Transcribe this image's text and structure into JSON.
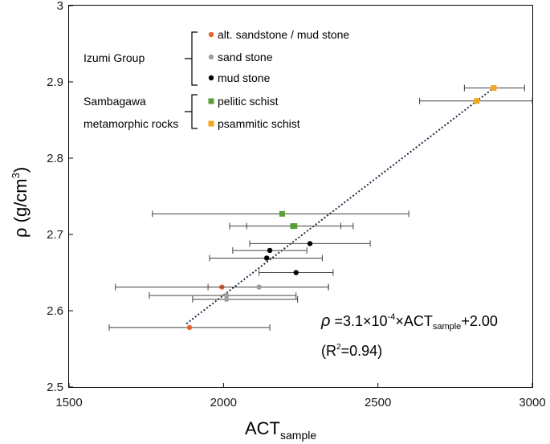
{
  "chart_data": {
    "type": "scatter",
    "title": "",
    "xlabel": "ACT",
    "xlabel_sub": "sample",
    "ylabel": "ρ (g/cm",
    "ylabel_sup": "3",
    "ylabel_close": ")",
    "xlim": [
      1500,
      3000
    ],
    "ylim": [
      2.5,
      3.0
    ],
    "xticks": [
      "1500",
      "2000",
      "2500",
      "3000"
    ],
    "xtick_values": [
      1500,
      2000,
      2500,
      3000
    ],
    "yticks": [
      "2.5",
      "2.6",
      "2.7",
      "2.8",
      "2.9",
      "3"
    ],
    "ytick_values": [
      2.5,
      2.6,
      2.7,
      2.8,
      2.9,
      3.0
    ],
    "grid": false,
    "legend_position": "top-left",
    "legend_groups": [
      {
        "label": "Izumi Group",
        "line2": ""
      },
      {
        "label": "Sambagawa",
        "line2": "metamorphic rocks"
      }
    ],
    "series": [
      {
        "name": "alt. sandstone / mud stone",
        "group": 0,
        "color": "#e8622c",
        "marker": "circle",
        "points": [
          {
            "x": 1890,
            "y": 2.578,
            "xerr": [
              1630,
              2150
            ]
          },
          {
            "x": 1995,
            "y": 2.631,
            "xerr": [
              1650,
              2340
            ]
          }
        ]
      },
      {
        "name": "sand stone",
        "group": 0,
        "color": "#9e9e9e",
        "marker": "circle",
        "points": [
          {
            "x": 2115,
            "y": 2.631,
            "xerr": [
              1950,
              2340
            ]
          },
          {
            "x": 2010,
            "y": 2.62,
            "xerr": [
              1760,
              2235
            ]
          },
          {
            "x": 2010,
            "y": 2.615,
            "xerr": [
              1900,
              2240
            ]
          }
        ]
      },
      {
        "name": "mud stone",
        "group": 0,
        "color": "#000000",
        "marker": "circle",
        "points": [
          {
            "x": 2280,
            "y": 2.688,
            "xerr": [
              2085,
              2475
            ]
          },
          {
            "x": 2150,
            "y": 2.679,
            "xerr": [
              2030,
              2270
            ]
          },
          {
            "x": 2140,
            "y": 2.669,
            "xerr": [
              1955,
              2320
            ]
          },
          {
            "x": 2235,
            "y": 2.65,
            "xerr": [
              2115,
              2355
            ]
          }
        ]
      },
      {
        "name": "pelitic schist",
        "group": 1,
        "color": "#5a9e3a",
        "marker": "square",
        "points": [
          {
            "x": 2190,
            "y": 2.727,
            "xerr": [
              1770,
              2600
            ]
          },
          {
            "x": 2225,
            "y": 2.711,
            "xerr": [
              2075,
              2380
            ]
          },
          {
            "x": 2230,
            "y": 2.711,
            "xerr": [
              2020,
              2420
            ]
          }
        ]
      },
      {
        "name": "psammitic schist",
        "group": 1,
        "color": "#f2a81d",
        "marker": "square",
        "points": [
          {
            "x": 2875,
            "y": 2.892,
            "xerr": [
              2780,
              2975
            ]
          },
          {
            "x": 2820,
            "y": 2.875,
            "xerr": [
              2635,
              3000
            ]
          }
        ]
      }
    ],
    "fit": {
      "x": [
        1880,
        2875
      ],
      "y": [
        2.583,
        2.892
      ],
      "style": "dotted"
    },
    "equation": {
      "rho": "ρ",
      "eq_a": " =3.1×10",
      "eq_exp": "-4",
      "eq_b": "×ACT",
      "eq_sub": "sample",
      "eq_c": "+2.00",
      "r2_a": "(R",
      "r2_sup": "2",
      "r2_b": "=0.94)"
    }
  }
}
